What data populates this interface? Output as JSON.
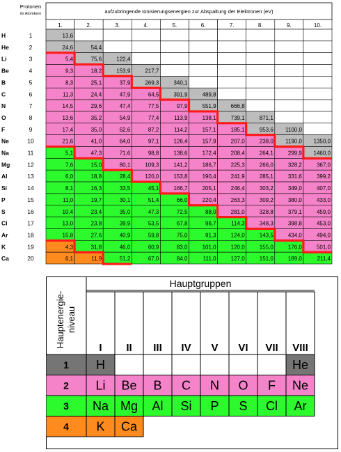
{
  "table1": {
    "protonen_header": "Protonen",
    "protonen_sub": "im Atomkern",
    "energies_title": "aufzubringende Ionisierungsenergien zur Abspaltung der Elektronen (eV)",
    "col_headers": [
      "1.",
      "2.",
      "3.",
      "4.",
      "5.",
      "6.",
      "7.",
      "8.",
      "9.",
      "10."
    ],
    "colors": {
      "gray": "#bdbdbd",
      "pink": "#f583c9",
      "green": "#2dfa2d",
      "orange": "#ff8a1e",
      "line": "#ff1a1a"
    },
    "rows": [
      {
        "el": "H",
        "z": "1",
        "vals": [
          "13,6"
        ]
      },
      {
        "el": "He",
        "z": "2",
        "vals": [
          "24,6",
          "54,4"
        ]
      },
      {
        "el": "Li",
        "z": "3",
        "vals": [
          "5,4",
          "75,6",
          "122,4"
        ]
      },
      {
        "el": "Be",
        "z": "4",
        "vals": [
          "9,3",
          "18,2",
          "153,9",
          "217,7"
        ]
      },
      {
        "el": "B",
        "z": "5",
        "vals": [
          "8,3",
          "25,1",
          "37,9",
          "269,3",
          "340,1"
        ]
      },
      {
        "el": "C",
        "z": "6",
        "vals": [
          "11,3",
          "24,4",
          "47,9",
          "64,5",
          "391,9",
          "489,8"
        ]
      },
      {
        "el": "N",
        "z": "7",
        "vals": [
          "14,5",
          "29,6",
          "47,4",
          "77,5",
          "97,9",
          "551,9",
          "666,8"
        ]
      },
      {
        "el": "O",
        "z": "8",
        "vals": [
          "13,6",
          "35,2",
          "54,9",
          "77,4",
          "113,9",
          "138,1",
          "739,1",
          "871,1"
        ]
      },
      {
        "el": "F",
        "z": "9",
        "vals": [
          "17,4",
          "35,0",
          "62,6",
          "87,2",
          "114,2",
          "157,1",
          "185,1",
          "953,6",
          "1100,0"
        ]
      },
      {
        "el": "Ne",
        "z": "10",
        "vals": [
          "21,6",
          "41,0",
          "64,0",
          "97,1",
          "126,4",
          "157,9",
          "207,0",
          "238,0",
          "1190,0",
          "1350,0"
        ]
      },
      {
        "el": "Na",
        "z": "11",
        "vals": [
          "5,1",
          "47,3",
          "71,6",
          "98,8",
          "138,6",
          "172,4",
          "208,4",
          "264,1",
          "299,9",
          "1460,0"
        ]
      },
      {
        "el": "Mg",
        "z": "12",
        "vals": [
          "7,6",
          "15,0",
          "80,1",
          "109,3",
          "141,2",
          "186,7",
          "225,3",
          "266,0",
          "328,2",
          "367,0"
        ]
      },
      {
        "el": "Al",
        "z": "13",
        "vals": [
          "6,0",
          "18,8",
          "28,4",
          "120,0",
          "153,8",
          "190,4",
          "241,9",
          "285,1",
          "331,6",
          "399,2"
        ]
      },
      {
        "el": "Si",
        "z": "14",
        "vals": [
          "8,1",
          "16,3",
          "33,5",
          "45,1",
          "166,7",
          "205,1",
          "246,4",
          "303,2",
          "349,0",
          "407,0"
        ]
      },
      {
        "el": "P",
        "z": "15",
        "vals": [
          "11,0",
          "19,7",
          "30,1",
          "51,4",
          "66,0",
          "220,4",
          "263,3",
          "309,2",
          "380,0",
          "433,0"
        ]
      },
      {
        "el": "S",
        "z": "16",
        "vals": [
          "10,4",
          "23,4",
          "35,0",
          "47,3",
          "72,5",
          "88,0",
          "281,0",
          "328,8",
          "379,1",
          "459,0"
        ]
      },
      {
        "el": "Cl",
        "z": "17",
        "vals": [
          "13,0",
          "23,8",
          "39,9",
          "53,5",
          "67,8",
          "96,7",
          "114,3",
          "348,3",
          "398,8",
          "453,0"
        ]
      },
      {
        "el": "Ar",
        "z": "18",
        "vals": [
          "15,8",
          "27,6",
          "40,9",
          "59,8",
          "75,0",
          "91,3",
          "124,0",
          "143,5",
          "434,0",
          "494,0"
        ]
      },
      {
        "el": "K",
        "z": "19",
        "vals": [
          "4,3",
          "31,8",
          "46,0",
          "60,9",
          "83,0",
          "101,0",
          "120,0",
          "155,0",
          "176,0",
          "501,0"
        ]
      },
      {
        "el": "Ca",
        "z": "20",
        "vals": [
          "6,1",
          "11,9",
          "51,2",
          "67,0",
          "84,0",
          "111,0",
          "127,0",
          "151,0",
          "189,0",
          "211,4"
        ]
      }
    ]
  },
  "table2": {
    "title": "Hauptgruppen",
    "side_label_line1": "Hauptenergie-",
    "side_label_line2": "niveau",
    "roman": [
      "I",
      "II",
      "III",
      "IV",
      "V",
      "VI",
      "VII",
      "VIII"
    ],
    "rows": [
      {
        "level": "1",
        "color": "#757575",
        "cells": [
          "H",
          "",
          "",
          "",
          "",
          "",
          "",
          "He"
        ]
      },
      {
        "level": "2",
        "color": "#f583c9",
        "cells": [
          "Li",
          "Be",
          "B",
          "C",
          "N",
          "O",
          "F",
          "Ne"
        ]
      },
      {
        "level": "3",
        "color": "#2dfa2d",
        "cells": [
          "Na",
          "Mg",
          "Al",
          "Si",
          "P",
          "S",
          "Cl",
          "Ar"
        ]
      },
      {
        "level": "4",
        "color": "#ff8a1e",
        "cells": [
          "K",
          "Ca"
        ]
      }
    ]
  }
}
